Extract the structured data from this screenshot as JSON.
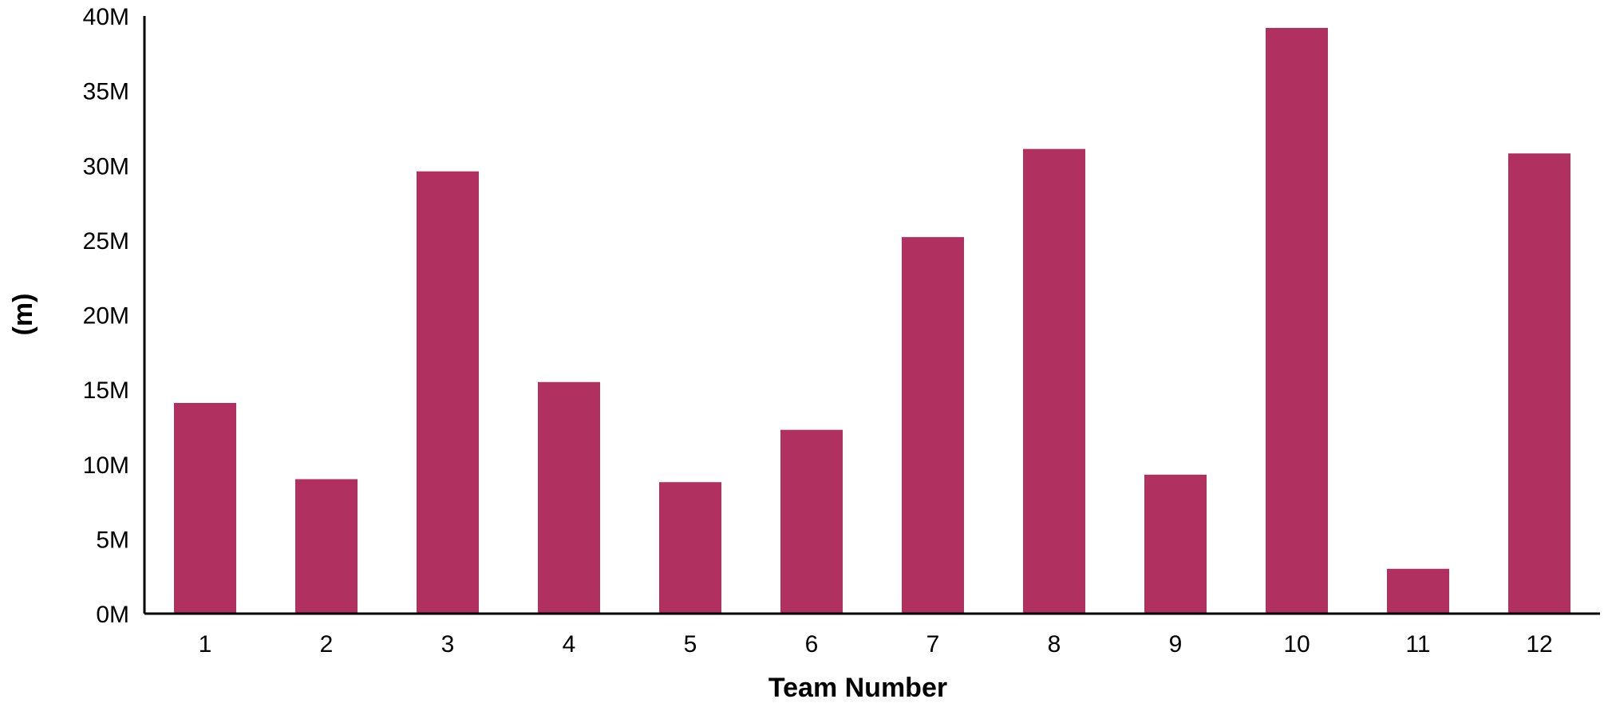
{
  "chart_data": {
    "type": "bar",
    "title": "",
    "xlabel": "Team Number",
    "ylabel": "(m)",
    "categories": [
      "1",
      "2",
      "3",
      "4",
      "5",
      "6",
      "7",
      "8",
      "9",
      "10",
      "11",
      "12"
    ],
    "values": [
      14100000,
      9000000,
      29600000,
      15500000,
      8800000,
      12300000,
      25200000,
      31100000,
      9300000,
      39200000,
      3000000,
      30800000
    ],
    "ylim": [
      0,
      40000000
    ],
    "yticks": [
      0,
      5000000,
      10000000,
      15000000,
      20000000,
      25000000,
      30000000,
      35000000,
      40000000
    ],
    "ytick_labels": [
      "0M",
      "5M",
      "10M",
      "15M",
      "20M",
      "25M",
      "30M",
      "35M",
      "40M"
    ],
    "grid": false,
    "legend": "none",
    "bar_color": "#B03060"
  }
}
